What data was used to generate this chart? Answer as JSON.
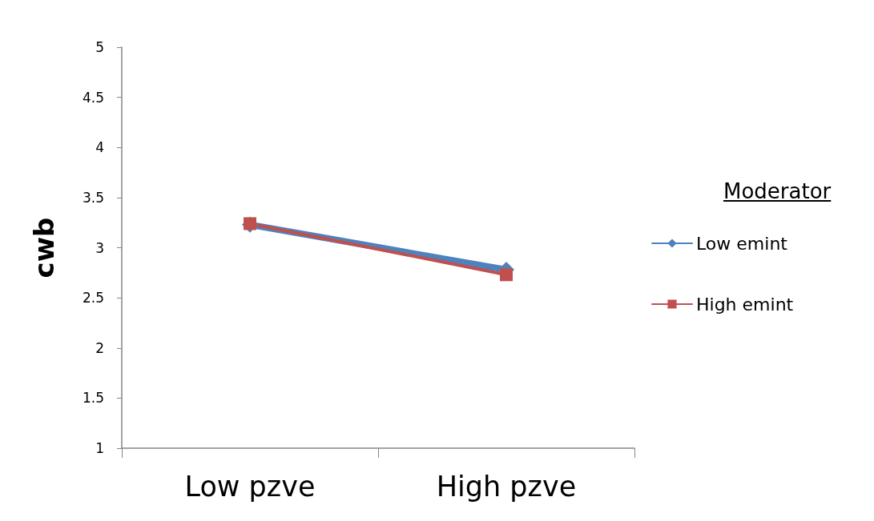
{
  "chart_data": {
    "type": "line",
    "ylabel": "cwb",
    "legend_title": "Moderator",
    "categories": [
      "Low pzve",
      "High pzve"
    ],
    "series": [
      {
        "name": "Low emint",
        "color": "#4f81bd",
        "marker": "diamond",
        "values": [
          3.23,
          2.78
        ]
      },
      {
        "name": "High emint",
        "color": "#c0504d",
        "marker": "square",
        "values": [
          3.24,
          2.73
        ]
      }
    ],
    "ylim": [
      1,
      5
    ],
    "yticks": [
      1,
      1.5,
      2,
      2.5,
      3,
      3.5,
      4,
      4.5,
      5
    ],
    "grid": false,
    "legend": "right",
    "line_style": "solid"
  }
}
